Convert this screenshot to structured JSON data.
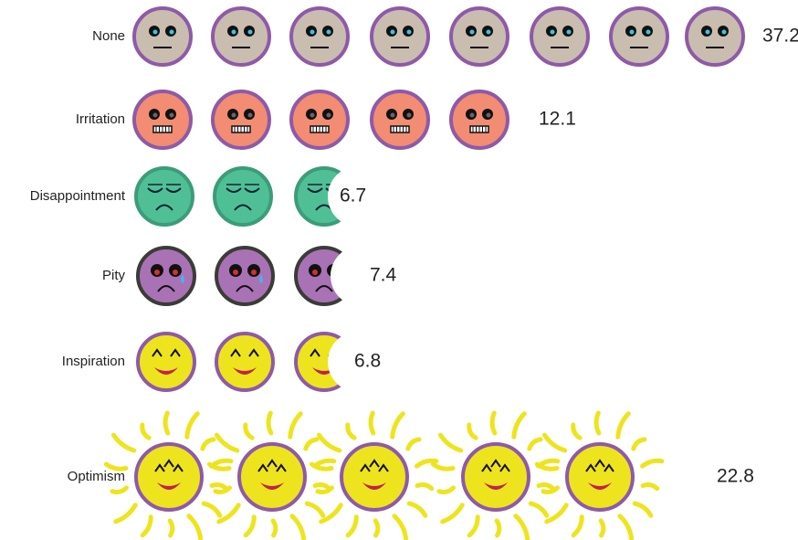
{
  "chart_data": {
    "type": "pictograph",
    "categories": [
      "None",
      "Irritation",
      "Disappointment",
      "Pity",
      "Inspiration",
      "Optimism"
    ],
    "values": [
      37.2,
      12.1,
      6.7,
      7.4,
      6.8,
      22.8
    ]
  }
}
